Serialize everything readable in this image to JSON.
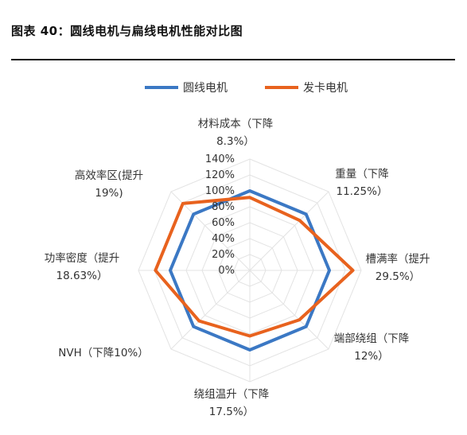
{
  "figure_title": "图表 40：圆线电机与扁线电机性能对比图",
  "chart_data": {
    "type": "radar",
    "title": "",
    "series": [
      {
        "name": "圆线电机",
        "color": "#3B78C4",
        "values": [
          100,
          100,
          100,
          100,
          100,
          100,
          100,
          100
        ]
      },
      {
        "name": "发卡电机",
        "color": "#E8621E",
        "values": [
          91.7,
          88.75,
          129.5,
          88,
          82.5,
          90,
          118.63,
          119
        ]
      }
    ],
    "axes": [
      [
        "材料成本（下降",
        "8.3%）"
      ],
      [
        "重量（下降",
        "11.25%）"
      ],
      [
        "槽满率（提升",
        "29.5%）"
      ],
      [
        "端部绕组（下降",
        "12%）"
      ],
      [
        "绕组温升（下降",
        "17.5%）"
      ],
      [
        "NVH（下降10%）"
      ],
      [
        "功率密度（提升",
        "18.63%）"
      ],
      [
        "高效率区(提升",
        "19%)"
      ]
    ],
    "ticks": [
      "0%",
      "20%",
      "40%",
      "60%",
      "80%",
      "100%",
      "120%",
      "140%"
    ],
    "r_max": 140,
    "grid": true,
    "legend_position": "top"
  }
}
